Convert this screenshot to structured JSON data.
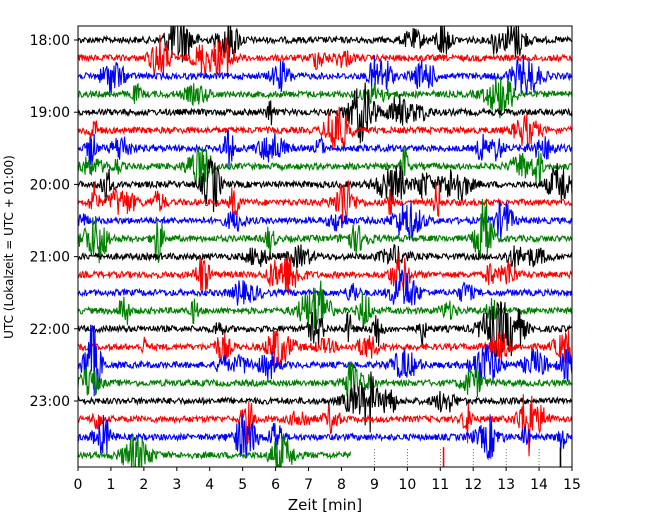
{
  "chart_data": {
    "type": "line",
    "title": "",
    "xlabel": "Zeit  [min]",
    "ylabel": "UTC (Lokalzeit = UTC + 01:00)",
    "xlim": [
      0,
      15
    ],
    "x_ticks": [
      0,
      1,
      2,
      3,
      4,
      5,
      6,
      7,
      8,
      9,
      10,
      11,
      12,
      13,
      14,
      15
    ],
    "y_ticks": [
      "18:00",
      "19:00",
      "20:00",
      "21:00",
      "22:00",
      "23:00"
    ],
    "y_tick_start_minute": 1080,
    "y_tick_step_minutes": 60,
    "trace_minutes": 15,
    "trace_start_minute": 1080,
    "trace_count": 24,
    "last_trace_end_min": 8.3,
    "colors": [
      "#000000",
      "#ff0000",
      "#0000ff",
      "#008000"
    ],
    "gridlines_after_last_trace": [
      9,
      10,
      11,
      12,
      13,
      14
    ],
    "grid": false
  }
}
